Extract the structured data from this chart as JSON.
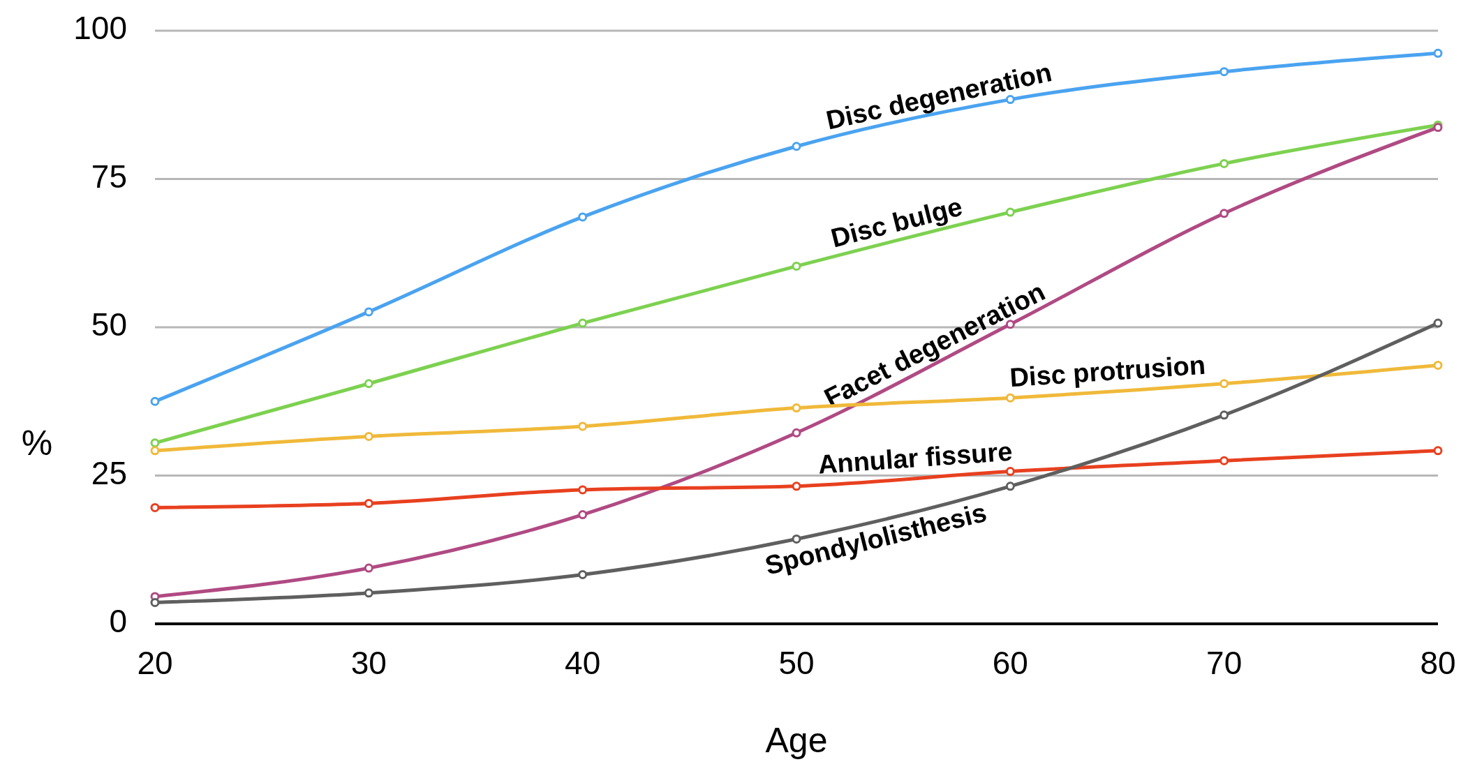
{
  "chart_data": {
    "type": "line",
    "xlabel": "Age",
    "ylabel": "%",
    "x": [
      20,
      30,
      40,
      50,
      60,
      70,
      80
    ],
    "xlim": [
      20,
      80
    ],
    "xticks": [
      20,
      30,
      40,
      50,
      60,
      70,
      80
    ],
    "ylim": [
      0,
      100
    ],
    "yticks": [
      0,
      25,
      50,
      75,
      100
    ],
    "grid": "y",
    "marker": "circle",
    "line_style": "solid",
    "series": [
      {
        "name": "Disc degeneration",
        "color": "#4aa3f0",
        "values": [
          37.5,
          52.6,
          68.6,
          80.5,
          88.4,
          93.1,
          96.2
        ]
      },
      {
        "name": "Disc bulge",
        "color": "#7dd150",
        "values": [
          30.5,
          40.5,
          50.7,
          60.3,
          69.4,
          77.6,
          84.1
        ]
      },
      {
        "name": "Facet degeneration",
        "color": "#b04a83",
        "values": [
          4.6,
          9.4,
          18.4,
          32.2,
          50.5,
          69.2,
          83.7
        ]
      },
      {
        "name": "Disc protrusion",
        "color": "#f0b93a",
        "values": [
          29.2,
          31.6,
          33.3,
          36.4,
          38.1,
          40.5,
          43.6
        ]
      },
      {
        "name": "Annular fissure",
        "color": "#e8401f",
        "values": [
          19.6,
          20.3,
          22.6,
          23.2,
          25.7,
          27.5,
          29.2
        ]
      },
      {
        "name": "Spondylolisthesis",
        "color": "#5f5f5f",
        "values": [
          3.6,
          5.2,
          8.3,
          14.3,
          23.2,
          35.2,
          50.7
        ]
      }
    ]
  }
}
